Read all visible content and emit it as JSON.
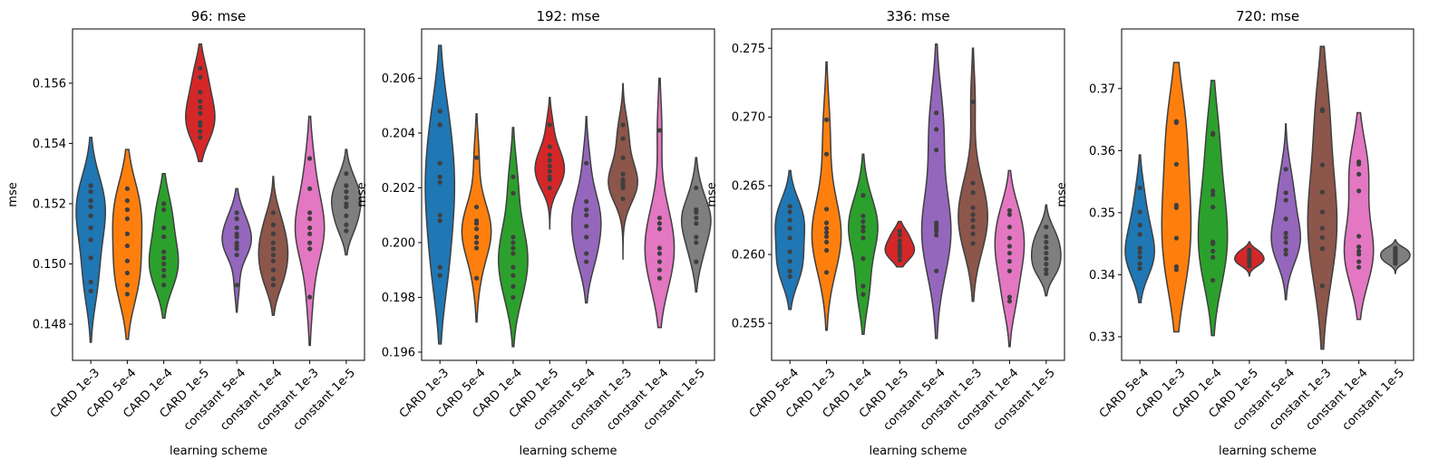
{
  "chart_data": [
    {
      "type": "violin",
      "title": "96: mse",
      "xlabel": "learning scheme",
      "ylabel": "mse",
      "ylim": [
        0.1468,
        0.1578
      ],
      "yticks": [
        0.148,
        0.15,
        0.152,
        0.154,
        0.156
      ],
      "ytick_labels": [
        "0.148",
        "0.150",
        "0.152",
        "0.154",
        "0.156"
      ],
      "categories": [
        "CARD 1e-3",
        "CARD 5e-4",
        "CARD 1e-4",
        "CARD 1e-5",
        "constant 5e-4",
        "constant 1e-4",
        "constant 1e-3",
        "constant 1e-5"
      ],
      "violins": [
        {
          "min": 0.1474,
          "max": 0.1542,
          "points": [
            0.1491,
            0.1494,
            0.1502,
            0.1508,
            0.1512,
            0.1516,
            0.1519,
            0.1521,
            0.1524,
            0.1526
          ]
        },
        {
          "min": 0.1475,
          "max": 0.1538,
          "points": [
            0.149,
            0.1493,
            0.1497,
            0.1501,
            0.1506,
            0.151,
            0.1515,
            0.1518,
            0.1521,
            0.1525
          ]
        },
        {
          "min": 0.1482,
          "max": 0.153,
          "points": [
            0.1493,
            0.1496,
            0.1498,
            0.15,
            0.1502,
            0.1504,
            0.1509,
            0.1512,
            0.1518,
            0.152
          ]
        },
        {
          "min": 0.1534,
          "max": 0.1573,
          "points": [
            0.1542,
            0.1544,
            0.1546,
            0.1547,
            0.155,
            0.1552,
            0.1554,
            0.1557,
            0.1562,
            0.1565
          ]
        },
        {
          "min": 0.1484,
          "max": 0.1525,
          "points": [
            0.1493,
            0.1503,
            0.1505,
            0.1506,
            0.1507,
            0.1509,
            0.151,
            0.1512,
            0.1515,
            0.1517
          ]
        },
        {
          "min": 0.1483,
          "max": 0.1529,
          "points": [
            0.1493,
            0.1495,
            0.1498,
            0.1501,
            0.1503,
            0.1505,
            0.1507,
            0.151,
            0.1513,
            0.1517
          ]
        },
        {
          "min": 0.1473,
          "max": 0.1549,
          "points": [
            0.1489,
            0.1505,
            0.1507,
            0.151,
            0.1512,
            0.1515,
            0.1517,
            0.1525,
            0.1535
          ]
        },
        {
          "min": 0.1503,
          "max": 0.1538,
          "points": [
            0.1511,
            0.1513,
            0.1516,
            0.1519,
            0.152,
            0.1522,
            0.1524,
            0.1526,
            0.153
          ]
        }
      ]
    },
    {
      "type": "violin",
      "title": "192: mse",
      "xlabel": "learning scheme",
      "ylabel": "mse",
      "ylim": [
        0.1957,
        0.2078
      ],
      "yticks": [
        0.196,
        0.198,
        0.2,
        0.202,
        0.204,
        0.206
      ],
      "ytick_labels": [
        "0.196",
        "0.198",
        "0.200",
        "0.202",
        "0.204",
        "0.206"
      ],
      "categories": [
        "CARD 1e-3",
        "CARD 5e-4",
        "CARD 1e-4",
        "CARD 1e-5",
        "constant 5e-4",
        "constant 1e-3",
        "constant 1e-4",
        "constant 1e-5"
      ],
      "violins": [
        {
          "min": 0.1963,
          "max": 0.2072,
          "points": [
            0.1988,
            0.1991,
            0.2008,
            0.201,
            0.2022,
            0.2024,
            0.2029,
            0.2043,
            0.2048
          ]
        },
        {
          "min": 0.1971,
          "max": 0.2047,
          "points": [
            0.1987,
            0.1998,
            0.2,
            0.2002,
            0.2005,
            0.2007,
            0.2008,
            0.2013,
            0.2031
          ]
        },
        {
          "min": 0.1962,
          "max": 0.2042,
          "points": [
            0.198,
            0.1984,
            0.1988,
            0.1991,
            0.1996,
            0.1998,
            0.2,
            0.2002,
            0.2018,
            0.2024
          ]
        },
        {
          "min": 0.2005,
          "max": 0.2053,
          "points": [
            0.202,
            0.2023,
            0.2024,
            0.2026,
            0.2028,
            0.203,
            0.2032,
            0.2035,
            0.2043
          ]
        },
        {
          "min": 0.1978,
          "max": 0.2046,
          "points": [
            0.1993,
            0.1996,
            0.2002,
            0.2006,
            0.201,
            0.2012,
            0.2015,
            0.2029
          ]
        },
        {
          "min": 0.1994,
          "max": 0.2058,
          "points": [
            0.2016,
            0.202,
            0.2021,
            0.2022,
            0.2023,
            0.2025,
            0.2031,
            0.2038,
            0.2043
          ]
        },
        {
          "min": 0.1969,
          "max": 0.206,
          "points": [
            0.1987,
            0.199,
            0.1993,
            0.1996,
            0.1998,
            0.2005,
            0.2007,
            0.2009,
            0.2041
          ]
        },
        {
          "min": 0.1982,
          "max": 0.2031,
          "points": [
            0.1993,
            0.2,
            0.2002,
            0.2007,
            0.2009,
            0.2011,
            0.2012,
            0.202
          ]
        }
      ]
    },
    {
      "type": "violin",
      "title": "336: mse",
      "xlabel": "learning scheme",
      "ylabel": "mse",
      "ylim": [
        0.2523,
        0.2764
      ],
      "yticks": [
        0.255,
        0.26,
        0.265,
        0.27,
        0.275
      ],
      "ytick_labels": [
        "0.255",
        "0.260",
        "0.265",
        "0.270",
        "0.275"
      ],
      "categories": [
        "CARD 5e-4",
        "CARD 1e-3",
        "CARD 1e-4",
        "CARD 1e-5",
        "constant 5e-4",
        "constant 1e-3",
        "constant 1e-4",
        "constant 1e-5"
      ],
      "violins": [
        {
          "min": 0.256,
          "max": 0.2661,
          "points": [
            0.2584,
            0.2588,
            0.2595,
            0.2602,
            0.2612,
            0.2619,
            0.2625,
            0.2631,
            0.2635
          ]
        },
        {
          "min": 0.2545,
          "max": 0.274,
          "points": [
            0.2587,
            0.2603,
            0.2609,
            0.2613,
            0.2616,
            0.2619,
            0.2623,
            0.2633,
            0.2673,
            0.2698
          ]
        },
        {
          "min": 0.2542,
          "max": 0.2673,
          "points": [
            0.2571,
            0.2577,
            0.2597,
            0.2612,
            0.2617,
            0.262,
            0.2624,
            0.2628,
            0.2643
          ]
        },
        {
          "min": 0.2591,
          "max": 0.2624,
          "points": [
            0.2596,
            0.2599,
            0.2601,
            0.2603,
            0.2605,
            0.2607,
            0.261,
            0.2614,
            0.2617
          ]
        },
        {
          "min": 0.2539,
          "max": 0.2753,
          "points": [
            0.2588,
            0.2614,
            0.2617,
            0.2619,
            0.2621,
            0.2623,
            0.2676,
            0.2691,
            0.2703
          ]
        },
        {
          "min": 0.2566,
          "max": 0.275,
          "points": [
            0.2608,
            0.2615,
            0.262,
            0.2625,
            0.2629,
            0.2634,
            0.2645,
            0.2652,
            0.2711
          ]
        },
        {
          "min": 0.2533,
          "max": 0.2661,
          "points": [
            0.2566,
            0.2569,
            0.2588,
            0.2595,
            0.2601,
            0.2606,
            0.2612,
            0.262,
            0.2629,
            0.2632
          ]
        },
        {
          "min": 0.257,
          "max": 0.2636,
          "points": [
            0.2586,
            0.2589,
            0.2593,
            0.2597,
            0.2601,
            0.2605,
            0.2609,
            0.2613,
            0.262
          ]
        }
      ]
    },
    {
      "type": "violin",
      "title": "720: mse",
      "xlabel": "learning scheme",
      "ylabel": "mse",
      "ylim": [
        0.3262,
        0.3796
      ],
      "yticks": [
        0.33,
        0.34,
        0.35,
        0.36,
        0.37
      ],
      "ytick_labels": [
        "0.33",
        "0.34",
        "0.35",
        "0.36",
        "0.37"
      ],
      "categories": [
        "CARD 5e-4",
        "CARD 1e-3",
        "CARD 1e-4",
        "CARD 1e-5",
        "constant 5e-4",
        "constant 1e-3",
        "constant 1e-4",
        "constant 1e-5"
      ],
      "violins": [
        {
          "min": 0.3355,
          "max": 0.3593,
          "points": [
            0.341,
            0.3418,
            0.3428,
            0.3436,
            0.3443,
            0.3465,
            0.348,
            0.3501,
            0.354
          ]
        },
        {
          "min": 0.3308,
          "max": 0.3742,
          "points": [
            0.3408,
            0.3413,
            0.3459,
            0.3508,
            0.3512,
            0.3578,
            0.3645,
            0.3647
          ]
        },
        {
          "min": 0.3302,
          "max": 0.3713,
          "points": [
            0.3391,
            0.3428,
            0.3438,
            0.345,
            0.3453,
            0.3509,
            0.3529,
            0.3535,
            0.3626,
            0.3628
          ]
        },
        {
          "min": 0.3398,
          "max": 0.3453,
          "points": [
            0.3414,
            0.3419,
            0.3422,
            0.3425,
            0.3428,
            0.3432,
            0.3436,
            0.344
          ]
        },
        {
          "min": 0.336,
          "max": 0.3643,
          "points": [
            0.3433,
            0.344,
            0.3452,
            0.346,
            0.3467,
            0.349,
            0.352,
            0.3532,
            0.357
          ]
        },
        {
          "min": 0.328,
          "max": 0.3768,
          "points": [
            0.3382,
            0.3442,
            0.346,
            0.3475,
            0.3501,
            0.3533,
            0.3577,
            0.3664,
            0.3666
          ]
        },
        {
          "min": 0.3328,
          "max": 0.3661,
          "points": [
            0.3412,
            0.3421,
            0.3433,
            0.3438,
            0.3445,
            0.3462,
            0.3535,
            0.3562,
            0.3578,
            0.3582
          ]
        },
        {
          "min": 0.3402,
          "max": 0.3456,
          "points": [
            0.3418,
            0.3422,
            0.3425,
            0.3428,
            0.3431,
            0.3434,
            0.3437,
            0.344,
            0.3443
          ]
        }
      ]
    }
  ],
  "palette": [
    "#1f77b4",
    "#ff7f0e",
    "#2ca02c",
    "#d62728",
    "#9467bd",
    "#8c564b",
    "#e377c2",
    "#7f7f7f"
  ],
  "inner_color": "#3f3f3f"
}
